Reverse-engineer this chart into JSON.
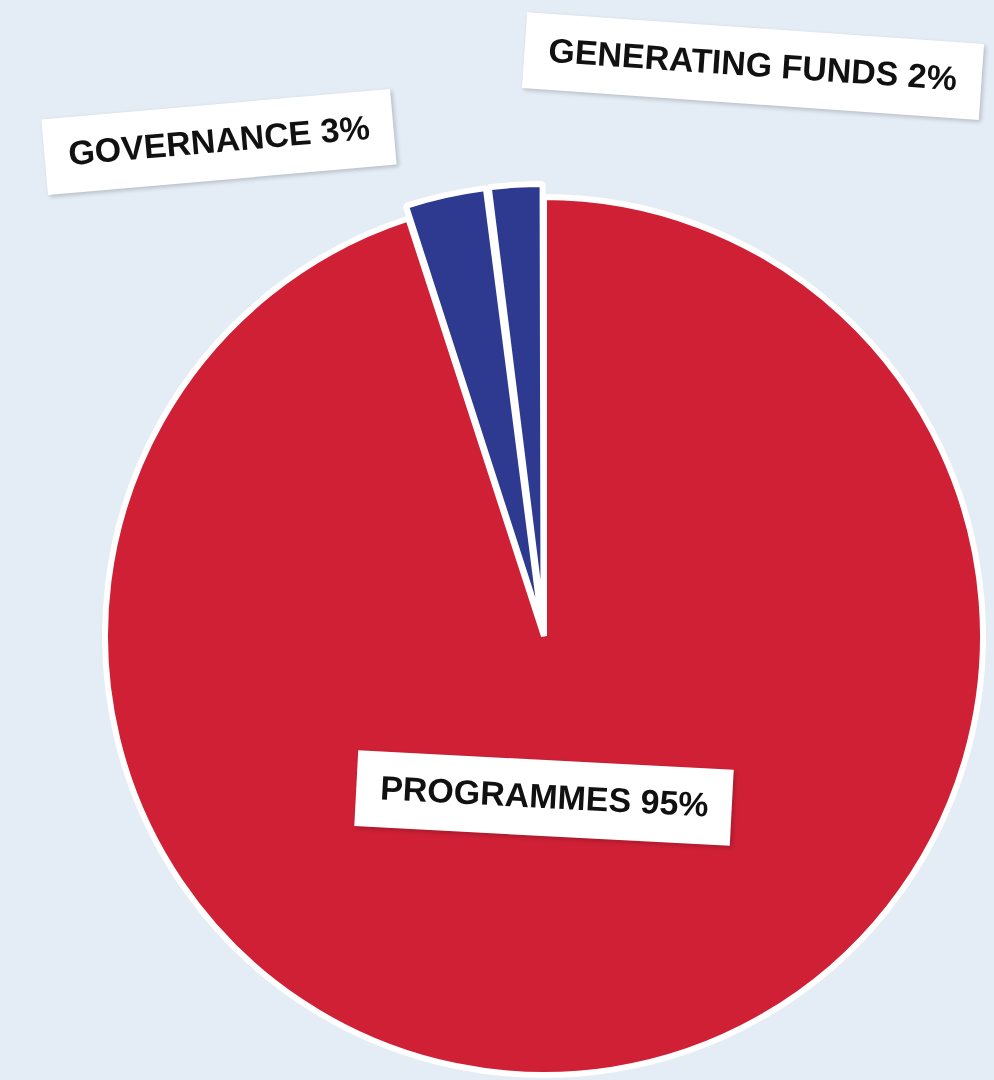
{
  "chart_data": {
    "type": "pie",
    "categories": [
      "PROGRAMMES",
      "GOVERNANCE",
      "GENERATING FUNDS"
    ],
    "values": [
      95,
      3,
      2
    ],
    "value_labels": [
      "95%",
      "3%",
      "2%"
    ],
    "colors": [
      "#cf2036",
      "#2e3a8f",
      "#2e3a8f"
    ],
    "legend": false
  }
}
